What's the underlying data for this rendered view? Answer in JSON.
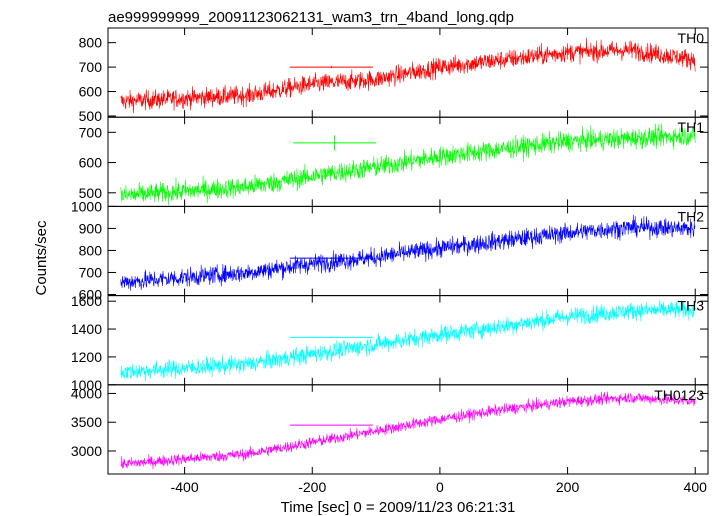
{
  "chart_data": {
    "type": "line",
    "title": "ae999999999_20091123062131_wam3_trn_4band_long.qdp",
    "xlabel": "Time [sec] 0 = 2009/11/23 06:21:31",
    "ylabel": "Counts/sec",
    "xlim": [
      -520,
      420
    ],
    "xticks": [
      -400,
      -200,
      0,
      200,
      400
    ],
    "x_start": -500,
    "x_end": 400,
    "series_color_meaning": "each panel one energy band",
    "panels": [
      {
        "name": "TH0",
        "color": "#ff0000",
        "ylim": [
          495,
          860
        ],
        "yticks": [
          500,
          600,
          700,
          800
        ],
        "trend": [
          [
            -500,
            560
          ],
          [
            -300,
            585
          ],
          [
            -200,
            630
          ],
          [
            -100,
            650
          ],
          [
            0,
            700
          ],
          [
            100,
            730
          ],
          [
            200,
            760
          ],
          [
            300,
            770
          ],
          [
            400,
            730
          ]
        ],
        "noise": 28,
        "reference_point": {
          "x": -170,
          "y": 700,
          "x_err": 65,
          "y_err": 4
        }
      },
      {
        "name": "TH1",
        "color": "#00ff00",
        "ylim": [
          455,
          750
        ],
        "yticks": [
          500,
          600,
          700
        ],
        "trend": [
          [
            -500,
            490
          ],
          [
            -300,
            520
          ],
          [
            -200,
            555
          ],
          [
            -100,
            585
          ],
          [
            0,
            620
          ],
          [
            100,
            645
          ],
          [
            200,
            670
          ],
          [
            300,
            680
          ],
          [
            400,
            690
          ]
        ],
        "noise": 24,
        "reference_point": {
          "x": -165,
          "y": 665,
          "x_err": 65,
          "y_err": 25
        }
      },
      {
        "name": "TH2",
        "color": "#0000ff",
        "ylim": [
          595,
          1000
        ],
        "yticks": [
          600,
          700,
          800,
          900,
          1000
        ],
        "trend": [
          [
            -500,
            655
          ],
          [
            -300,
            700
          ],
          [
            -200,
            740
          ],
          [
            -100,
            770
          ],
          [
            0,
            810
          ],
          [
            100,
            845
          ],
          [
            200,
            880
          ],
          [
            300,
            905
          ],
          [
            400,
            900
          ]
        ],
        "noise": 30,
        "reference_point": {
          "x": -170,
          "y": 765,
          "x_err": 65,
          "y_err": 4
        }
      },
      {
        "name": "TH3",
        "color": "#00ffff",
        "ylim": [
          1000,
          1640
        ],
        "yticks": [
          1000,
          1200,
          1400,
          1600
        ],
        "trend": [
          [
            -500,
            1090
          ],
          [
            -300,
            1150
          ],
          [
            -200,
            1220
          ],
          [
            -100,
            1290
          ],
          [
            0,
            1360
          ],
          [
            100,
            1420
          ],
          [
            200,
            1490
          ],
          [
            300,
            1530
          ],
          [
            400,
            1540
          ]
        ],
        "noise": 45,
        "reference_point": {
          "x": -170,
          "y": 1340,
          "x_err": 65,
          "y_err": 5
        }
      },
      {
        "name": "TH0123",
        "color": "#ff00ff",
        "ylim": [
          2600,
          4150
        ],
        "yticks": [
          3000,
          3500,
          4000
        ],
        "trend": [
          [
            -500,
            2770
          ],
          [
            -300,
            2950
          ],
          [
            -200,
            3150
          ],
          [
            -100,
            3350
          ],
          [
            0,
            3550
          ],
          [
            100,
            3720
          ],
          [
            200,
            3860
          ],
          [
            300,
            3930
          ],
          [
            400,
            3860
          ]
        ],
        "noise": 70,
        "reference_point": {
          "x": -170,
          "y": 3450,
          "x_err": 65,
          "y_err": 6
        }
      }
    ]
  }
}
